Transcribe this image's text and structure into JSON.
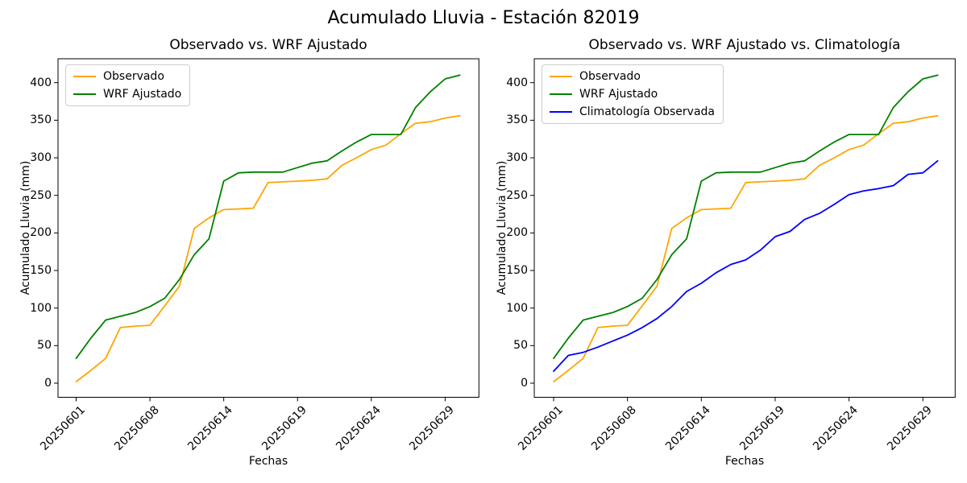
{
  "figure_title": "Acumulado Lluvia - Estación 82019",
  "colors": {
    "observado": "#FFA500",
    "wrf_ajustado": "#008000",
    "climatologia": "#0000FF",
    "axes": "#000000",
    "legend_border": "#cccccc"
  },
  "chart_data": [
    {
      "type": "line",
      "title": "Observado vs. WRF Ajustado",
      "xlabel": "Fechas",
      "ylabel": "Acumulado Lluvia (mm)",
      "grid": false,
      "legend_position": "upper left",
      "n_points": 27,
      "yticks": [
        0,
        50,
        100,
        150,
        200,
        250,
        300,
        350,
        400
      ],
      "ylim": [
        -20,
        432
      ],
      "x_tick_indices": [
        0,
        5,
        10,
        15,
        20,
        25
      ],
      "x_tick_labels": [
        "20250601",
        "20250608",
        "20250614",
        "20250619",
        "20250624",
        "20250629"
      ],
      "x_tick_rotation": 45,
      "series": [
        {
          "name": "Observado",
          "color": "#FFA500",
          "values": [
            2,
            17,
            33,
            74,
            76,
            77,
            103,
            129,
            206,
            220,
            231,
            232,
            233,
            267,
            268,
            269,
            270,
            272,
            290,
            300,
            311,
            317,
            332,
            346,
            348,
            353,
            356
          ]
        },
        {
          "name": "WRF Ajustado",
          "color": "#008000",
          "values": [
            33,
            60,
            84,
            89,
            94,
            102,
            113,
            138,
            171,
            192,
            269,
            280,
            281,
            281,
            281,
            287,
            293,
            296,
            309,
            321,
            331,
            331,
            331,
            367,
            388,
            405,
            410
          ]
        }
      ]
    },
    {
      "type": "line",
      "title": "Observado vs. WRF Ajustado vs. Climatología",
      "xlabel": "Fechas",
      "ylabel": "Acumulado Lluvia (mm)",
      "grid": false,
      "legend_position": "upper left",
      "n_points": 27,
      "yticks": [
        0,
        50,
        100,
        150,
        200,
        250,
        300,
        350,
        400
      ],
      "ylim": [
        -20,
        432
      ],
      "x_tick_indices": [
        0,
        5,
        10,
        15,
        20,
        25
      ],
      "x_tick_labels": [
        "20250601",
        "20250608",
        "20250614",
        "20250619",
        "20250624",
        "20250629"
      ],
      "x_tick_rotation": 45,
      "series": [
        {
          "name": "Observado",
          "color": "#FFA500",
          "values": [
            2,
            17,
            33,
            74,
            76,
            77,
            103,
            129,
            206,
            220,
            231,
            232,
            233,
            267,
            268,
            269,
            270,
            272,
            290,
            300,
            311,
            317,
            332,
            346,
            348,
            353,
            356
          ]
        },
        {
          "name": "WRF Ajustado",
          "color": "#008000",
          "values": [
            33,
            60,
            84,
            89,
            94,
            102,
            113,
            138,
            171,
            192,
            269,
            280,
            281,
            281,
            281,
            287,
            293,
            296,
            309,
            321,
            331,
            331,
            331,
            367,
            388,
            405,
            410
          ]
        },
        {
          "name": "Climatología Observada",
          "color": "#0000FF",
          "values": [
            16,
            37,
            41,
            48,
            56,
            64,
            74,
            86,
            102,
            122,
            133,
            147,
            158,
            164,
            177,
            195,
            202,
            218,
            226,
            238,
            251,
            256,
            259,
            263,
            278,
            280,
            296
          ]
        }
      ]
    }
  ]
}
